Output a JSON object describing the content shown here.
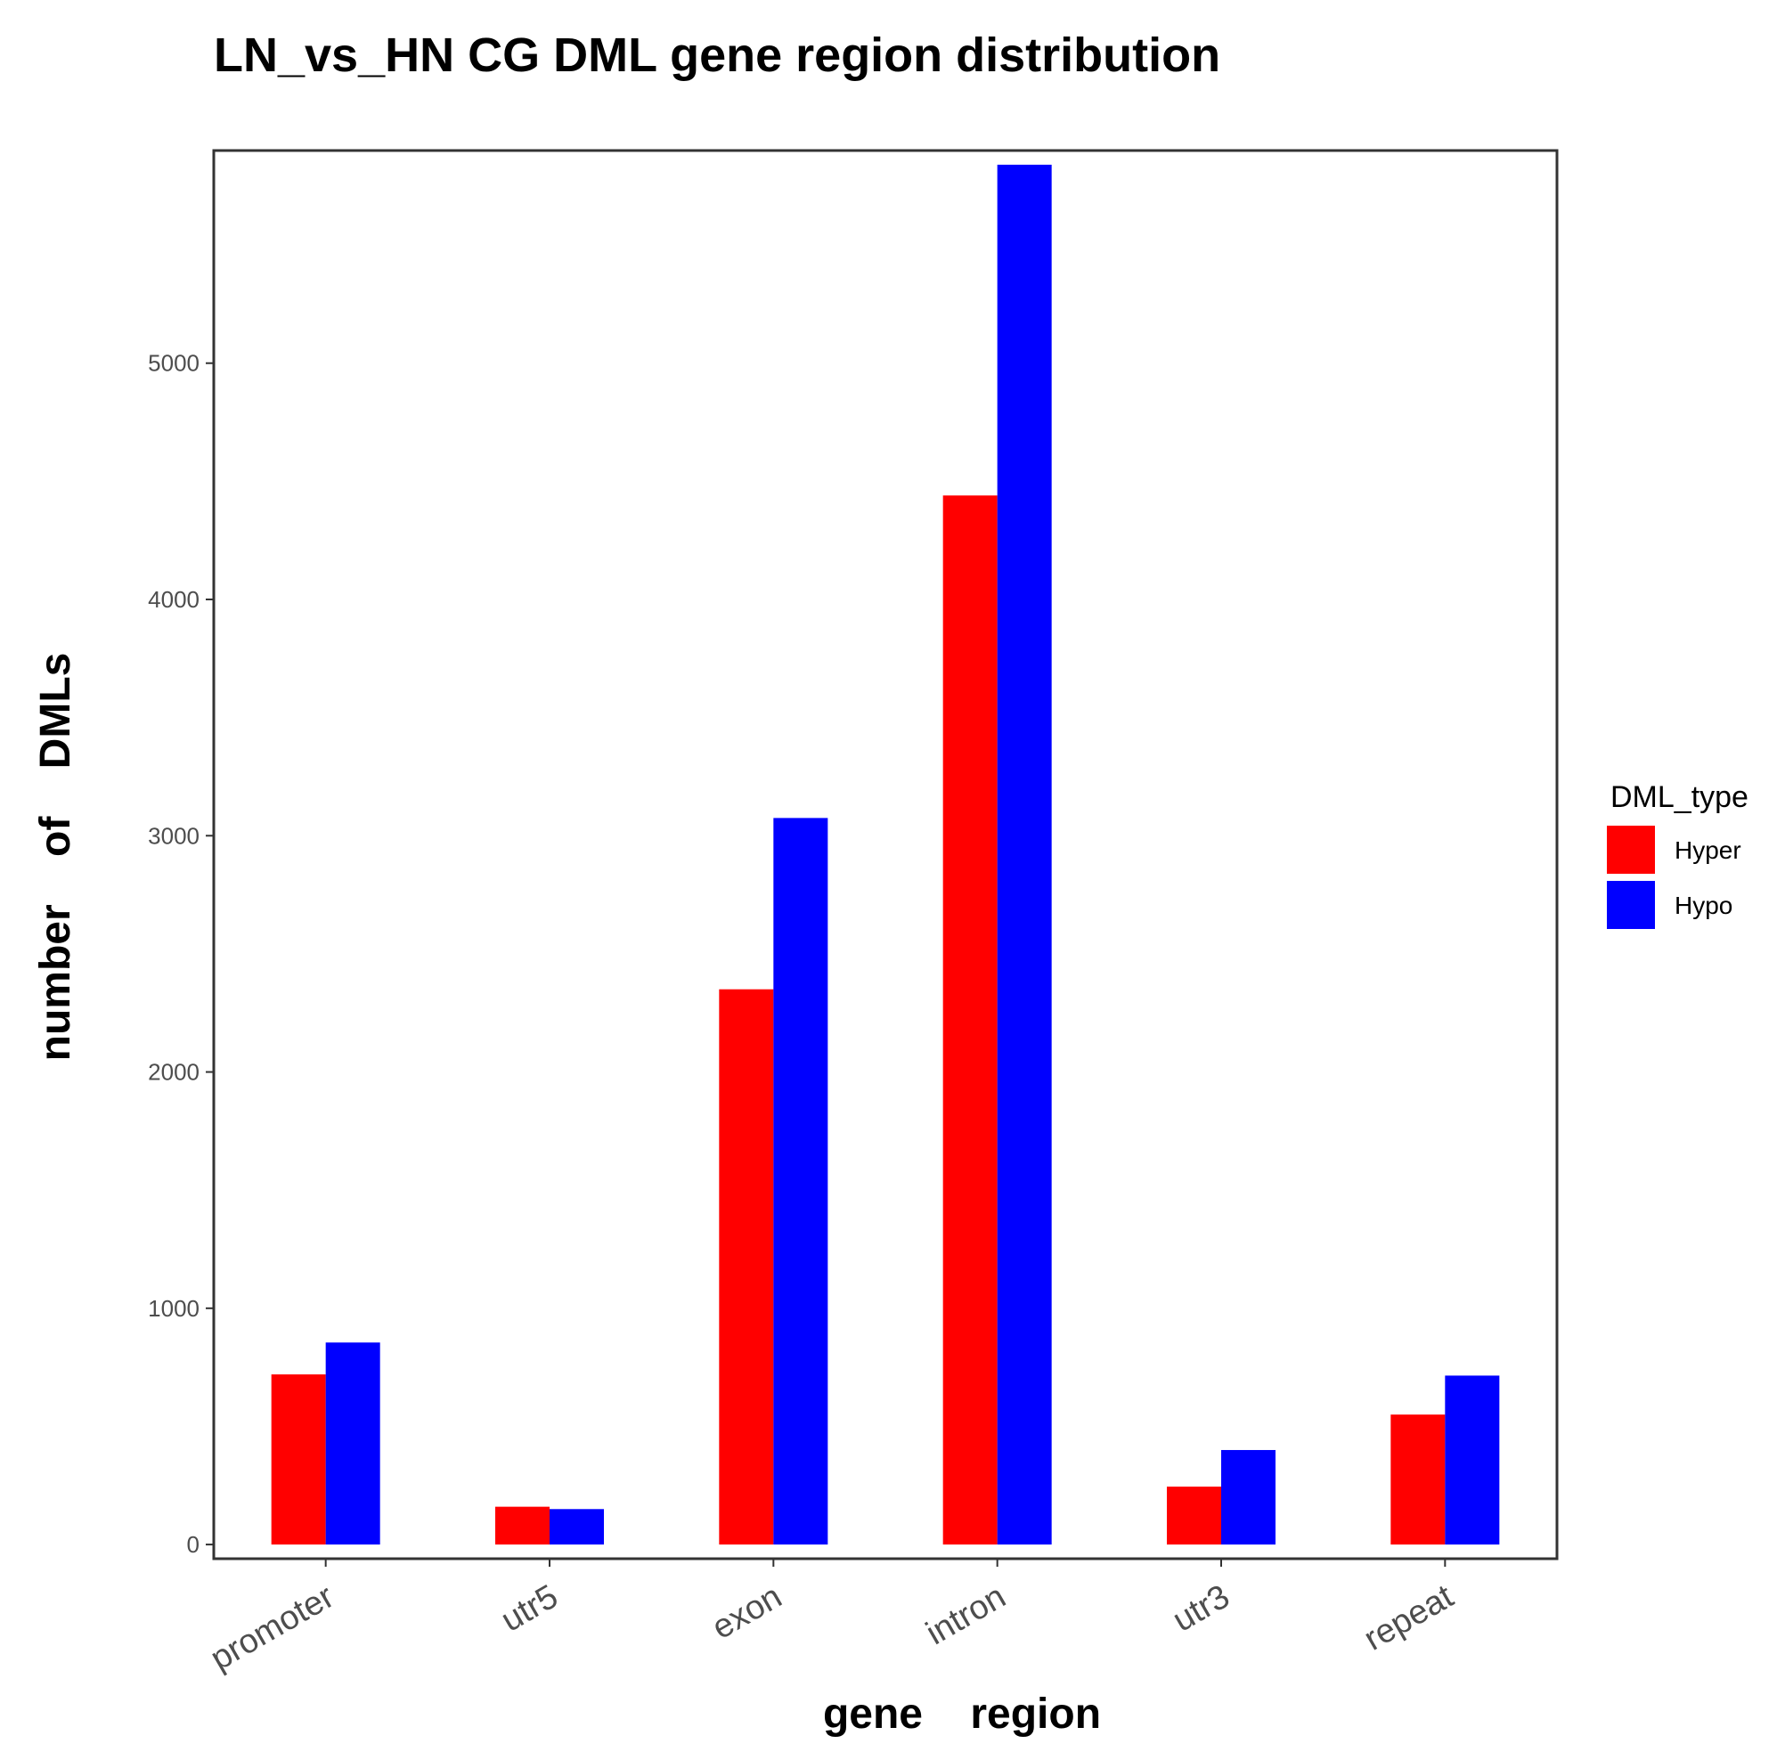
{
  "chart_data": {
    "type": "bar",
    "title": "LN_vs_HN  CG  DML  gene region  distribution",
    "xlabel": "gene    region",
    "ylabel": "number    of    DMLs",
    "categories": [
      "promoter",
      "utr5",
      "exon",
      "intron",
      "utr3",
      "repeat"
    ],
    "series": [
      {
        "name": "Hyper",
        "color": "#ff0000",
        "values": [
          720,
          160,
          2350,
          4440,
          245,
          550
        ]
      },
      {
        "name": "Hypo",
        "color": "#0000ff",
        "values": [
          855,
          150,
          3075,
          5840,
          400,
          715
        ]
      }
    ],
    "yticks": [
      0,
      1000,
      2000,
      3000,
      4000,
      5000
    ],
    "ylim": [
      -60,
      5900
    ],
    "grid": false,
    "legend": {
      "title": "DML_type",
      "position": "right"
    }
  }
}
